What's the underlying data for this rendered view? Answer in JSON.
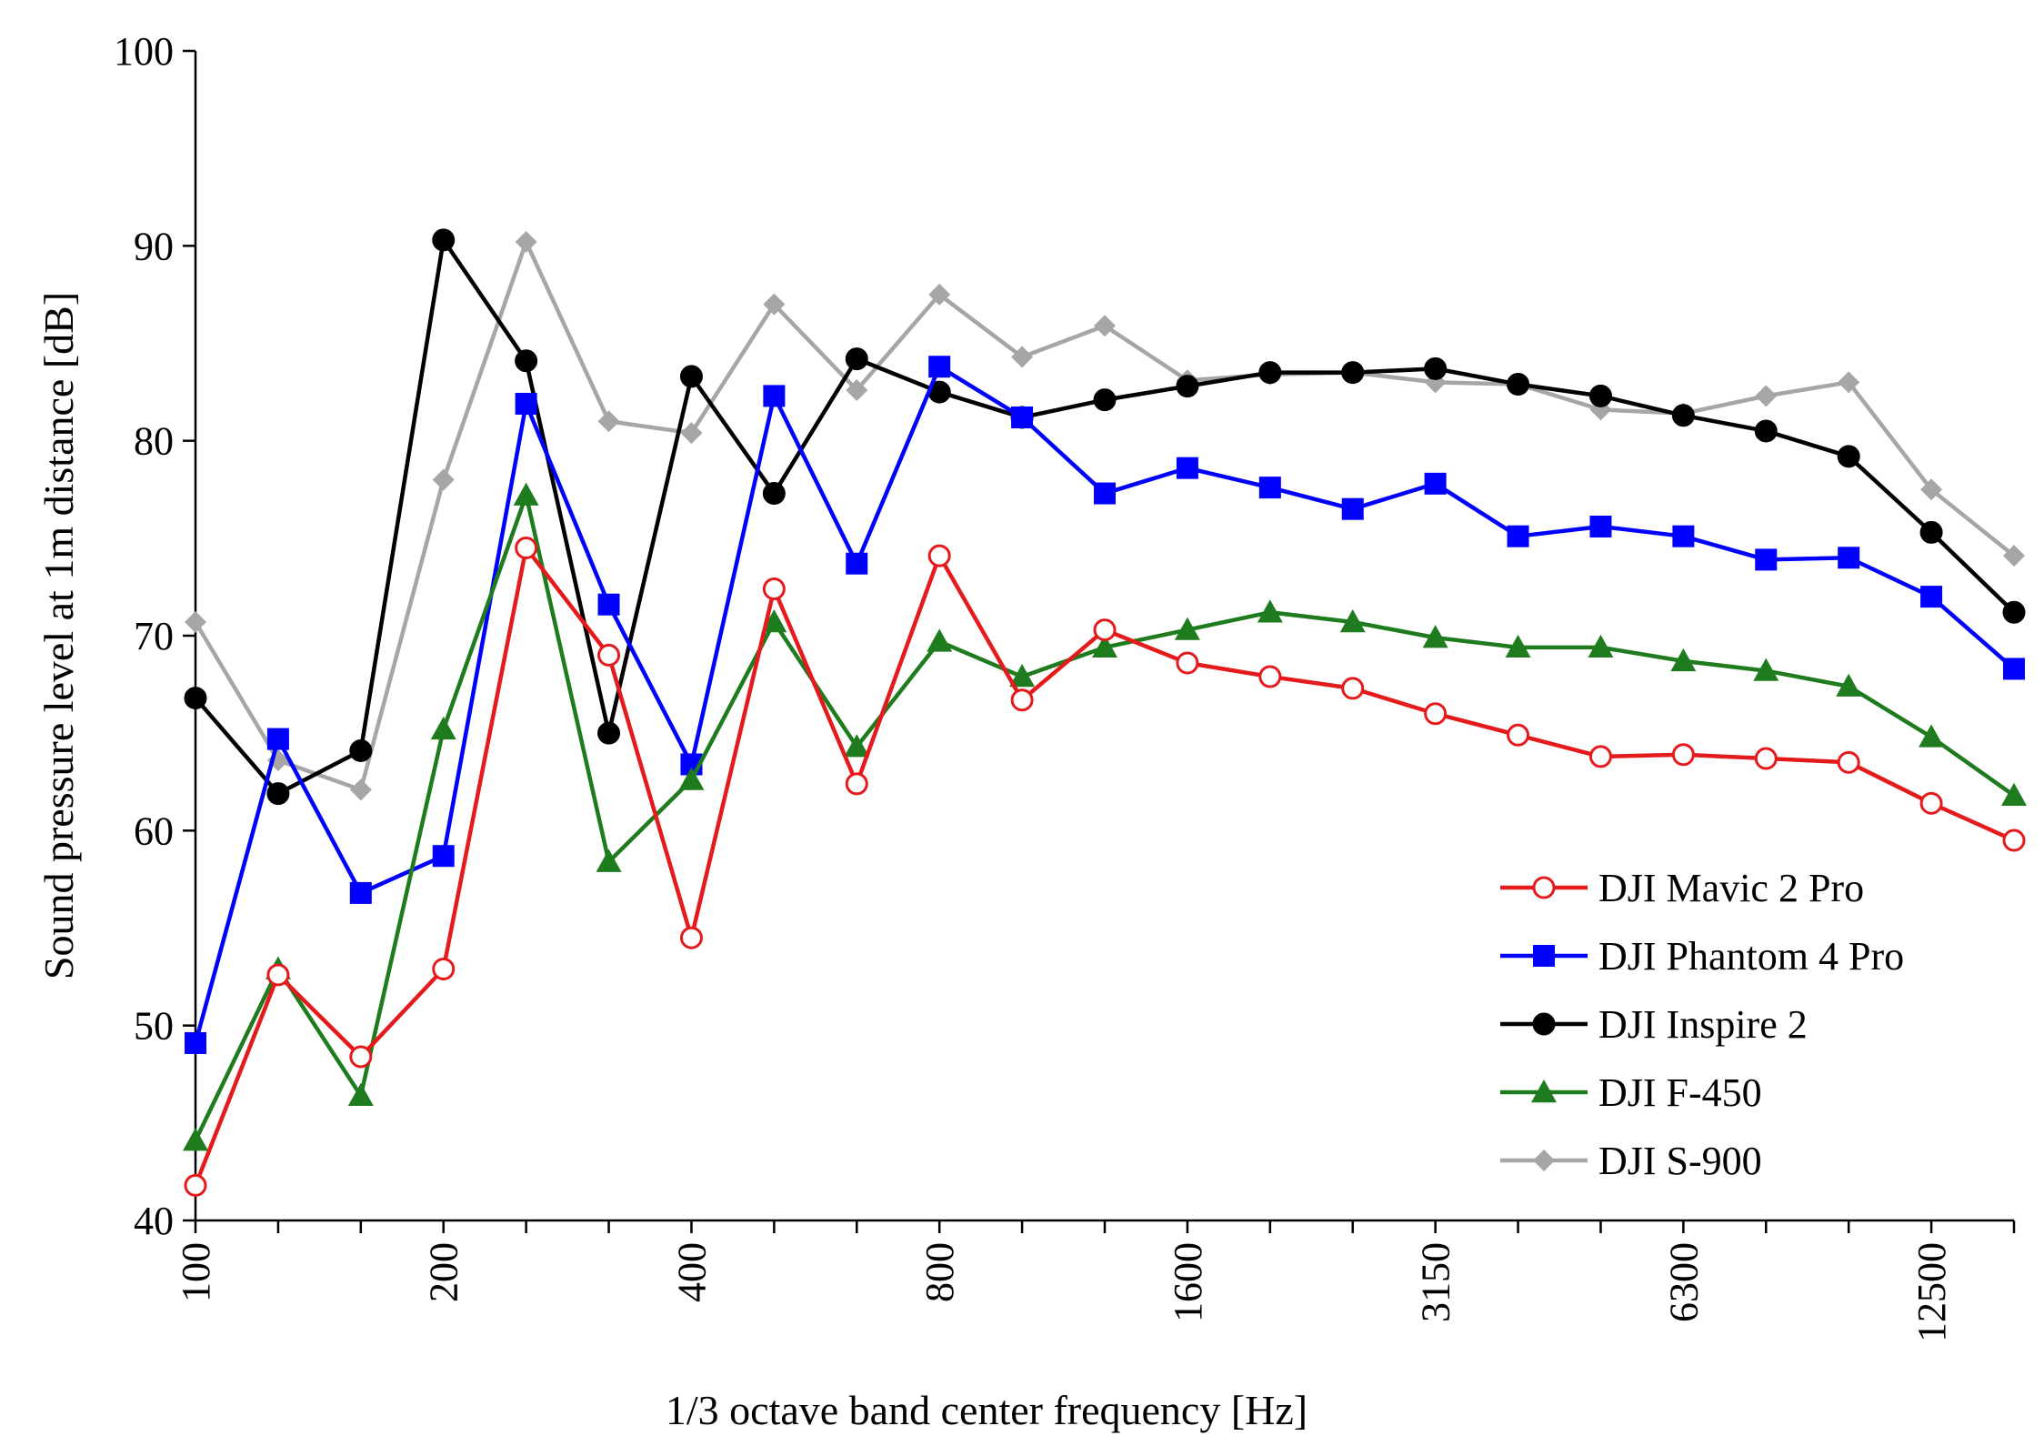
{
  "chart_data": {
    "type": "line",
    "title": "",
    "xlabel": "1/3 octave band center frequency [Hz]",
    "ylabel": "Sound pressure level at 1m distance [dB]",
    "ylim": [
      40,
      100
    ],
    "yticks": [
      "40",
      "50",
      "60",
      "70",
      "80",
      "90",
      "100"
    ],
    "x": [
      "100",
      "125",
      "160",
      "200",
      "250",
      "315",
      "400",
      "500",
      "630",
      "800",
      "1000",
      "1250",
      "1600",
      "2000",
      "2500",
      "3150",
      "4000",
      "5000",
      "6300",
      "8000",
      "10000",
      "12500",
      "16000"
    ],
    "xtick_labels": [
      "100",
      "200",
      "400",
      "800",
      "1600",
      "3150",
      "6300",
      "12500"
    ],
    "grid": false,
    "legend": "bottom-right",
    "series": [
      {
        "name": "DJI Mavic 2 Pro",
        "color": "#e41a1c",
        "marker": "open-circle",
        "values": [
          41.8,
          52.6,
          48.4,
          52.9,
          74.5,
          69.0,
          54.5,
          72.4,
          62.4,
          74.1,
          66.7,
          70.3,
          68.6,
          67.9,
          67.3,
          66.0,
          64.9,
          63.8,
          63.9,
          63.7,
          63.5,
          61.4,
          59.5
        ]
      },
      {
        "name": "DJI Phantom 4 Pro",
        "color": "#0000ff",
        "marker": "square",
        "values": [
          49.1,
          64.7,
          56.8,
          58.7,
          81.9,
          71.6,
          63.4,
          82.3,
          73.7,
          83.8,
          81.2,
          77.3,
          78.6,
          77.6,
          76.5,
          77.8,
          75.1,
          75.6,
          75.1,
          73.9,
          74.0,
          72.0,
          68.3
        ]
      },
      {
        "name": "DJI Inspire 2",
        "color": "#000000",
        "marker": "circle",
        "values": [
          66.8,
          61.9,
          64.1,
          90.3,
          84.1,
          65.0,
          83.3,
          77.3,
          84.2,
          82.5,
          81.2,
          82.1,
          82.8,
          83.5,
          83.5,
          83.7,
          82.9,
          82.3,
          81.3,
          80.5,
          79.2,
          75.3,
          71.2
        ]
      },
      {
        "name": "DJI F-450",
        "color": "#1e7b1e",
        "marker": "triangle",
        "values": [
          44.1,
          52.9,
          46.4,
          65.2,
          77.2,
          58.4,
          62.6,
          70.7,
          64.3,
          69.7,
          67.9,
          69.4,
          70.3,
          71.2,
          70.7,
          69.9,
          69.4,
          69.4,
          68.7,
          68.2,
          67.4,
          64.8,
          61.8
        ]
      },
      {
        "name": "DJI S-900",
        "color": "#a6a6a6",
        "marker": "diamond",
        "values": [
          70.7,
          63.6,
          62.1,
          78.0,
          90.2,
          81.0,
          80.4,
          87.0,
          82.6,
          87.5,
          84.3,
          85.9,
          83.1,
          83.4,
          83.5,
          83.0,
          82.9,
          81.6,
          81.4,
          82.3,
          83.0,
          77.5,
          74.1
        ]
      }
    ]
  }
}
